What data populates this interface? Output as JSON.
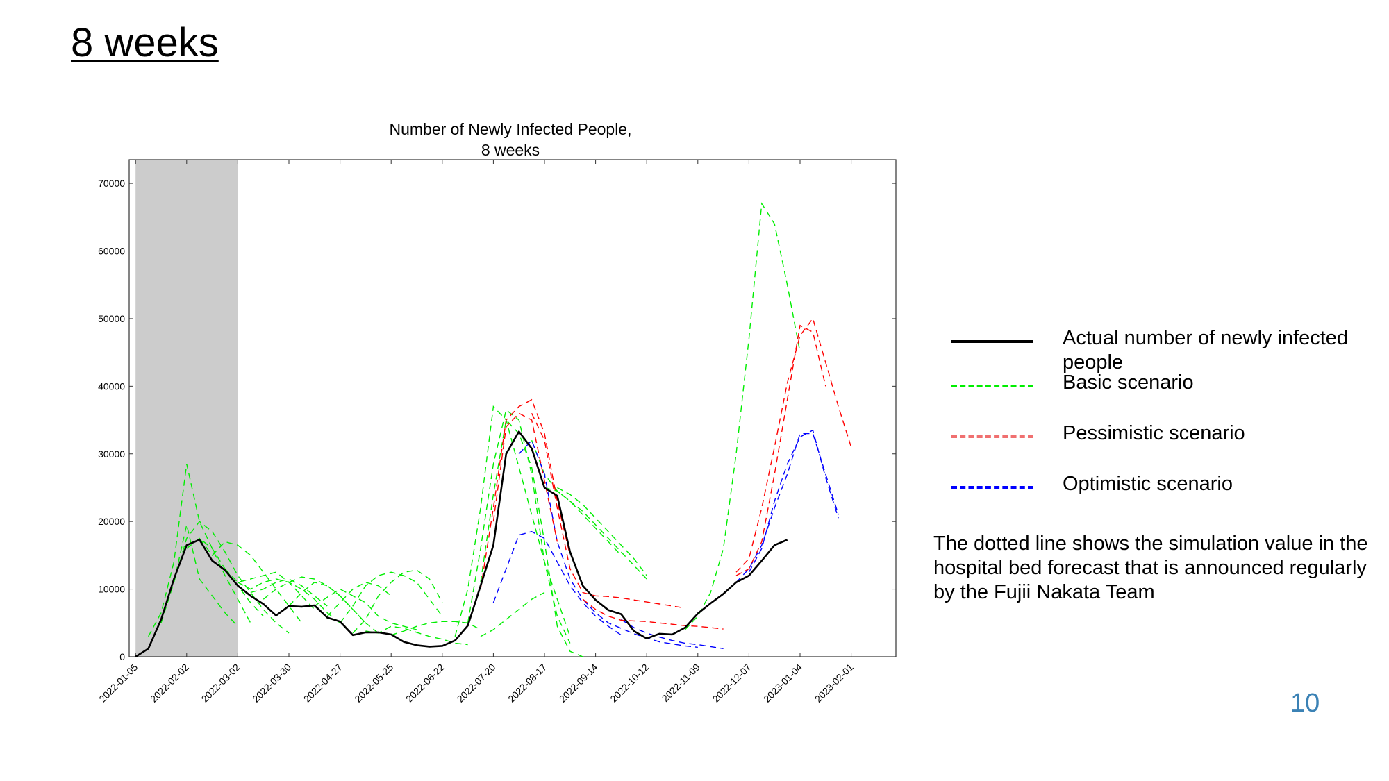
{
  "slide": {
    "title": "8 weeks",
    "page_number": "10",
    "note": "The dotted line shows the simulation value in the hospital bed forecast that is announced regularly by the Fujii Nakata Team"
  },
  "legend": [
    {
      "label": "Actual number of newly infected people",
      "color": "#000000",
      "style": "solid"
    },
    {
      "label": "Basic scenario",
      "color": "#00ee00",
      "style": "dashed"
    },
    {
      "label": "Pessimistic scenario",
      "color": "#f07070",
      "style": "dashed"
    },
    {
      "label": "Optimistic scenario",
      "color": "#0000ff",
      "style": "dashed"
    }
  ],
  "chart_data": {
    "type": "line",
    "title": "Number of Newly Infected People,\n8 weeks",
    "title_lines": [
      "Number of Newly Infected People,",
      "8 weeks"
    ],
    "xlabel": "",
    "ylabel": "",
    "x_tick_labels": [
      "2022-01-05",
      "2022-02-02",
      "2022-03-02",
      "2022-03-30",
      "2022-04-27",
      "2022-05-25",
      "2022-06-22",
      "2022-07-20",
      "2022-08-17",
      "2022-09-14",
      "2022-10-12",
      "2022-11-09",
      "2022-12-07",
      "2023-01-04",
      "2023-02-01"
    ],
    "x_week_range": [
      -0.5,
      59.5
    ],
    "ylim": [
      0,
      73500
    ],
    "y_ticks": [
      0,
      10000,
      20000,
      30000,
      40000,
      50000,
      60000,
      70000
    ],
    "shaded_region": {
      "from": "2022-01-05",
      "to": "2022-03-02",
      "color": "#cccccc"
    },
    "colors": {
      "actual": "#000000",
      "basic": "#00ee00",
      "pessimistic": "#ff0000",
      "optimistic": "#0000ff"
    },
    "actual": {
      "name": "Actual number of newly infected people",
      "start": "2022-01-05",
      "values": [
        0,
        1200,
        5500,
        11500,
        16500,
        17300,
        14200,
        12800,
        10500,
        9000,
        7800,
        6100,
        7500,
        7400,
        7600,
        5800,
        5200,
        3200,
        3600,
        3600,
        3300,
        2200,
        1700,
        1500,
        1600,
        2400,
        4600,
        10500,
        16500,
        30000,
        33300,
        30800,
        25000,
        23800,
        15500,
        10500,
        8400,
        6900,
        6300,
        3800,
        2700,
        3400,
        3300,
        4300,
        6400,
        7900,
        9300,
        11000,
        12000,
        14200,
        16500,
        17300
      ]
    },
    "scenarios": {
      "basic": [
        {
          "start_week": 1,
          "values": [
            3000,
            6500,
            14000,
            28500,
            20000,
            16000,
            12000,
            8500,
            5000
          ]
        },
        {
          "start_week": 2,
          "values": [
            5000,
            11000,
            19500,
            11500,
            9000,
            6500,
            4500
          ]
        },
        {
          "start_week": 3,
          "values": [
            11000,
            17500,
            20000,
            18500,
            15500,
            12000,
            9500,
            7000,
            5000,
            3500
          ]
        },
        {
          "start_week": 4,
          "values": [
            16000,
            17500,
            16000,
            13000,
            10500,
            8000,
            6000
          ]
        },
        {
          "start_week": 5,
          "values": [
            17500,
            15000,
            17000,
            16500,
            15000,
            12500,
            10000,
            7500,
            5000
          ]
        },
        {
          "start_week": 7,
          "values": [
            13000,
            11000,
            11500,
            12000,
            12500,
            11000,
            9000,
            7000
          ]
        },
        {
          "start_week": 8,
          "values": [
            11000,
            10000,
            11000,
            11500,
            11000,
            10000,
            8500,
            6500,
            5000
          ]
        },
        {
          "start_week": 9,
          "values": [
            9500,
            10000,
            11000,
            11500,
            10500,
            9000,
            7500
          ]
        },
        {
          "start_week": 10,
          "values": [
            8500,
            10000,
            11000,
            11800,
            11500,
            10500,
            9000,
            7000,
            5000,
            3500
          ]
        },
        {
          "start_week": 12,
          "values": [
            7500,
            9500,
            11000,
            10500,
            9000,
            7000,
            5000
          ]
        },
        {
          "start_week": 14,
          "values": [
            7500,
            8800,
            10000,
            9000,
            8000,
            6000,
            5000,
            4500,
            4000
          ]
        },
        {
          "start_week": 15,
          "values": [
            6000,
            8000,
            10000,
            11000,
            10500,
            9000
          ]
        },
        {
          "start_week": 16,
          "values": [
            5000,
            7500,
            10500,
            12000,
            12500,
            12000,
            11000,
            8500,
            6000
          ]
        },
        {
          "start_week": 17,
          "values": [
            3500,
            5500,
            9000,
            11000,
            12500,
            12800,
            11500,
            8000
          ]
        },
        {
          "start_week": 18,
          "values": [
            3800,
            3500,
            4500,
            4200,
            3600,
            3000,
            2600,
            2000,
            1800
          ]
        },
        {
          "start_week": 20,
          "values": [
            3200,
            3800,
            4500,
            5000,
            5200,
            5200,
            5000,
            4000
          ]
        },
        {
          "start_week": 25,
          "values": [
            3000,
            10000,
            22000,
            37000,
            35000,
            28000,
            21000,
            14000,
            8500,
            3000
          ]
        },
        {
          "start_week": 26,
          "values": [
            5000,
            16000,
            28500,
            36500,
            35000,
            27000,
            14000,
            6000,
            2000
          ]
        },
        {
          "start_week": 27,
          "values": [
            11000,
            24000,
            35000,
            33000,
            28000,
            17000,
            4500,
            800,
            0
          ]
        },
        {
          "start_week": 27,
          "values": [
            3000,
            4000,
            5500,
            7000,
            8500,
            9500
          ]
        },
        {
          "start_week": 31,
          "values": [
            32000,
            27000,
            24500,
            23000,
            21500,
            19500,
            17500,
            15500,
            13500,
            11500
          ]
        },
        {
          "start_week": 32,
          "values": [
            25000,
            24500,
            23000,
            21000,
            19000,
            17000,
            15000
          ]
        },
        {
          "start_week": 33,
          "values": [
            25000,
            24000,
            22500,
            20500,
            18500,
            16500,
            14500,
            12000
          ]
        },
        {
          "start_week": 43,
          "values": [
            4000,
            6000,
            9500,
            16000,
            30000,
            47000,
            67000,
            64000,
            55000,
            45000
          ]
        }
      ],
      "pessimistic": [
        {
          "start_week": 27,
          "values": [
            10000,
            22000,
            35000,
            37000,
            38000,
            33000,
            23000,
            15000
          ]
        },
        {
          "start_week": 28,
          "values": [
            20000,
            34000,
            36000,
            35000,
            26000,
            17000
          ]
        },
        {
          "start_week": 31,
          "values": [
            36000,
            32000,
            22000,
            13000,
            9500,
            9000,
            8900,
            8700,
            8400,
            8100,
            7800,
            7500,
            7200
          ]
        },
        {
          "start_week": 35,
          "values": [
            8500,
            7000,
            6000,
            5400,
            5300,
            5200,
            5000,
            4800,
            4600,
            4500,
            4300,
            4100
          ]
        },
        {
          "start_week": 47,
          "values": [
            12000,
            13000,
            17000,
            27000,
            38000,
            49000,
            48000,
            40000
          ]
        },
        {
          "start_week": 47,
          "values": [
            12500,
            14500,
            22000,
            31000,
            40500,
            47500,
            50000,
            43500,
            37000,
            31000
          ]
        }
      ],
      "optimistic": [
        {
          "start_week": 28,
          "values": [
            8000,
            13000,
            18000,
            18500,
            17500,
            14000,
            10500,
            8000,
            6000,
            4500,
            3200
          ]
        },
        {
          "start_week": 30,
          "values": [
            30000,
            32000,
            27000,
            17000,
            11500,
            8500,
            6500,
            5000,
            4200,
            3400,
            2800,
            2200,
            1900,
            1600,
            1400
          ]
        },
        {
          "start_week": 38,
          "values": [
            5500,
            4300,
            3500,
            2900,
            2400,
            2000,
            1800,
            1500,
            1200
          ]
        },
        {
          "start_week": 47,
          "values": [
            11000,
            13000,
            16500,
            22000,
            27000,
            33000,
            33000,
            27000,
            21000
          ]
        },
        {
          "start_week": 48,
          "values": [
            12500,
            16000,
            23000,
            28500,
            32500,
            33500,
            26500,
            20500
          ]
        }
      ]
    }
  }
}
